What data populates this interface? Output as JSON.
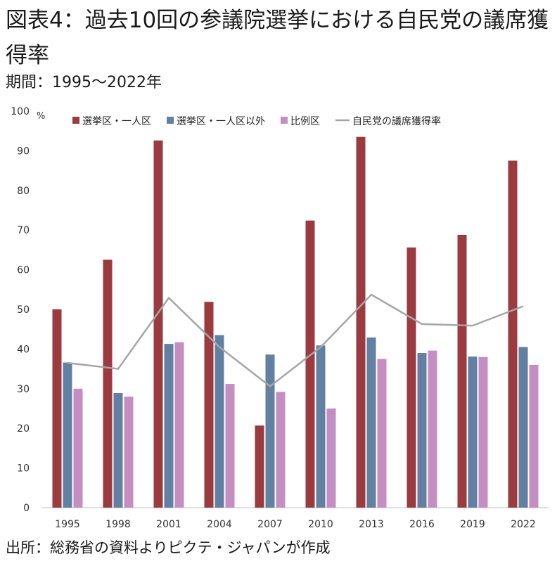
{
  "title": "図表4：過去10回の参議院選挙における自民党の議席獲得率",
  "subtitle": "期間：1995〜2022年",
  "source": "出所：総務省の資料よりピクテ・ジャパンが作成",
  "chart_data": {
    "type": "bar",
    "unit_label": "%",
    "categories": [
      "1995",
      "1998",
      "2001",
      "2004",
      "2007",
      "2010",
      "2013",
      "2016",
      "2019",
      "2022"
    ],
    "ylim": [
      0,
      100
    ],
    "yticks": [
      0,
      10,
      20,
      30,
      40,
      50,
      60,
      70,
      80,
      90,
      100
    ],
    "grid": false,
    "legend_position": "top",
    "series": [
      {
        "name": "選挙区・一人区",
        "kind": "bar",
        "color": "#9b3b40",
        "values": [
          50.0,
          62.5,
          92.6,
          51.9,
          20.7,
          72.4,
          93.5,
          65.6,
          68.8,
          87.5
        ]
      },
      {
        "name": "選挙区・一人区以外",
        "kind": "bar",
        "color": "#6280a2",
        "values": [
          36.6,
          28.9,
          41.3,
          43.5,
          38.6,
          40.9,
          42.9,
          39.0,
          38.1,
          40.5
        ]
      },
      {
        "name": "比例区",
        "kind": "bar",
        "color": "#c58ec3",
        "values": [
          30.0,
          28.0,
          41.7,
          31.2,
          29.2,
          25.0,
          37.5,
          39.6,
          38.0,
          36.0
        ]
      },
      {
        "name": "自民党の議席獲得率",
        "kind": "line",
        "color": "#a6a6a6",
        "values": [
          36.5,
          35.0,
          52.9,
          40.5,
          30.6,
          40.5,
          53.7,
          46.3,
          45.9,
          50.8
        ]
      }
    ]
  }
}
